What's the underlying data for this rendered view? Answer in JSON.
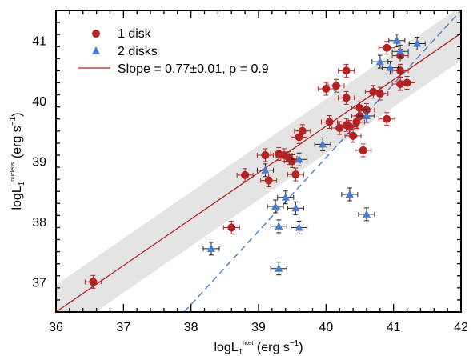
{
  "chart_data": {
    "type": "scatter",
    "xlabel_main": "logL",
    "xlabel_sub": "1",
    "xlabel_sup": "host",
    "xlabel_unit": "(erg s",
    "xlabel_unit_sup": "−1",
    "xlabel_close": ")",
    "ylabel_main": "logL",
    "ylabel_sub": "1",
    "ylabel_sup": "nucleus",
    "ylabel_unit": "(erg s",
    "ylabel_unit_sup": "−1",
    "ylabel_close": ")",
    "xlim": [
      36,
      42
    ],
    "ylim": [
      36.5,
      41.5
    ],
    "xticks": [
      "36",
      "37",
      "38",
      "39",
      "40",
      "41",
      "42"
    ],
    "yticks": [
      "37",
      "38",
      "39",
      "40",
      "41"
    ],
    "legend_position": "top-left",
    "colors": {
      "one_disk": "#b22222",
      "two_disks": "#4a7bd0",
      "fit_line": "#b22222",
      "dashed_line": "#4a7bd0",
      "band": "#e4e4e4"
    },
    "series": [
      {
        "name": "1 disk",
        "marker": "circle",
        "points": [
          [
            36.55,
            37.0
          ],
          [
            38.6,
            37.9
          ],
          [
            38.8,
            38.77
          ],
          [
            39.1,
            39.1
          ],
          [
            39.15,
            38.68
          ],
          [
            39.3,
            39.12
          ],
          [
            39.38,
            39.1
          ],
          [
            39.45,
            39.05
          ],
          [
            39.5,
            39.0
          ],
          [
            39.55,
            38.78
          ],
          [
            39.6,
            39.4
          ],
          [
            39.65,
            39.5
          ],
          [
            40.0,
            40.2
          ],
          [
            40.05,
            39.65
          ],
          [
            40.15,
            40.25
          ],
          [
            40.2,
            39.55
          ],
          [
            40.3,
            39.6
          ],
          [
            40.3,
            40.5
          ],
          [
            40.35,
            39.57
          ],
          [
            40.4,
            39.42
          ],
          [
            40.3,
            40.05
          ],
          [
            40.45,
            39.65
          ],
          [
            40.5,
            39.75
          ],
          [
            40.5,
            39.88
          ],
          [
            40.6,
            39.85
          ],
          [
            40.7,
            40.15
          ],
          [
            40.8,
            40.12
          ],
          [
            40.9,
            40.88
          ],
          [
            41.1,
            40.75
          ],
          [
            41.1,
            40.5
          ],
          [
            41.1,
            40.28
          ],
          [
            41.2,
            40.3
          ],
          [
            40.9,
            39.7
          ],
          [
            40.55,
            39.18
          ]
        ],
        "error_bars": true
      },
      {
        "name": "2 disks",
        "marker": "triangle",
        "points": [
          [
            38.3,
            37.55
          ],
          [
            39.1,
            38.85
          ],
          [
            39.25,
            38.25
          ],
          [
            39.3,
            37.92
          ],
          [
            39.3,
            37.22
          ],
          [
            39.4,
            38.4
          ],
          [
            39.55,
            38.22
          ],
          [
            39.6,
            37.9
          ],
          [
            39.6,
            39.03
          ],
          [
            39.95,
            39.28
          ],
          [
            40.35,
            38.45
          ],
          [
            40.6,
            38.12
          ],
          [
            40.6,
            39.75
          ],
          [
            40.8,
            40.65
          ],
          [
            40.95,
            40.55
          ],
          [
            41.05,
            41.0
          ],
          [
            41.1,
            40.82
          ],
          [
            41.35,
            40.95
          ]
        ],
        "error_bars": true
      }
    ],
    "fit": {
      "name": "Slope = 0.77±0.01, ρ = 0.9",
      "slope": 0.77,
      "intercept_at_36": 36.5,
      "band_half_width": 0.45
    },
    "dashed_line": {
      "from": [
        37.9,
        36.5
      ],
      "to": [
        42.0,
        41.5
      ]
    }
  }
}
